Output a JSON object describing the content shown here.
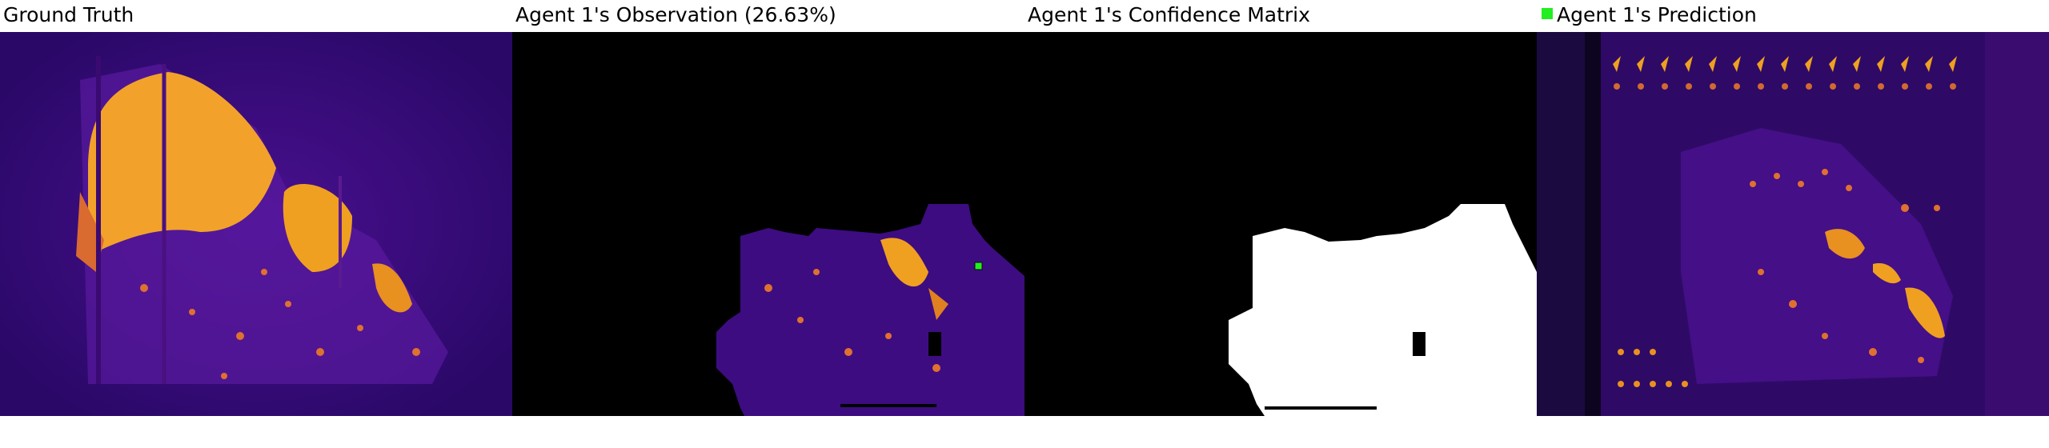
{
  "panels": [
    {
      "id": "ground-truth",
      "title": "Ground Truth"
    },
    {
      "id": "observation",
      "title": "Agent 1's Observation (26.63%)"
    },
    {
      "id": "confidence",
      "title": "Agent 1's Confidence Matrix"
    },
    {
      "id": "prediction",
      "title": "Agent 1's Prediction"
    }
  ],
  "legend": {
    "marker_color": "#22ee22"
  },
  "colors": {
    "background_heatmap": "#3a0a7a",
    "hot": "#f5a623",
    "confidence_region": "#ffffff",
    "unobserved": "#000000",
    "agent_marker": "#22ee22"
  }
}
